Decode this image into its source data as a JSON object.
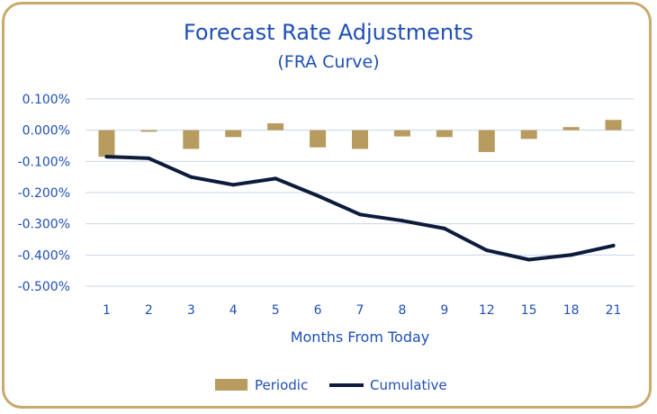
{
  "chart_data": {
    "type": "bar",
    "title": "Forecast Rate Adjustments",
    "subtitle": "(FRA Curve)",
    "xlabel": "Months From Today",
    "ylabel": "",
    "categories": [
      "1",
      "2",
      "3",
      "4",
      "5",
      "6",
      "7",
      "8",
      "9",
      "12",
      "15",
      "18",
      "21"
    ],
    "ylim": [
      -0.005,
      0.001
    ],
    "yticks": [
      "0.100%",
      "0.000%",
      "-0.100%",
      "-0.200%",
      "-0.300%",
      "-0.400%",
      "-0.500%"
    ],
    "grid": true,
    "legend_position": "bottom",
    "series": [
      {
        "name": "Periodic",
        "kind": "bar",
        "color": "#b89b5e",
        "values": [
          -0.00085,
          -5e-05,
          -0.0006,
          -0.00022,
          0.00022,
          -0.00055,
          -0.0006,
          -0.0002,
          -0.00022,
          -0.0007,
          -0.00028,
          0.0001,
          0.00033
        ]
      },
      {
        "name": "Cumulative",
        "kind": "line",
        "color": "#0d1b3d",
        "values": [
          -0.00085,
          -0.0009,
          -0.0015,
          -0.00175,
          -0.00155,
          -0.0021,
          -0.0027,
          -0.0029,
          -0.00315,
          -0.00385,
          -0.00415,
          -0.004,
          -0.0037
        ]
      }
    ]
  }
}
